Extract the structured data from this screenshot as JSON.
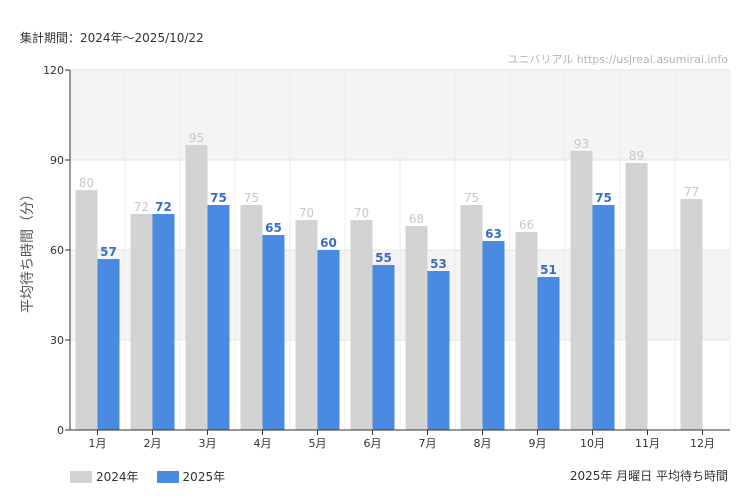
{
  "header": {
    "period": "集計期間：2024年～2025/10/22"
  },
  "watermark": "ユニバリアル https://usjreal.asumirai.info",
  "footnote": "2025年 月曜日 平均待ち時間",
  "colors": {
    "series_2024": "#d3d3d3",
    "series_2025": "#4a8ae0",
    "label_2024": "#c8c8c8",
    "label_2025": "#3a6fc0"
  },
  "chart_data": {
    "type": "bar",
    "title": "",
    "xlabel": "",
    "ylabel": "平均待ち時間（分）",
    "ylim": [
      0,
      120
    ],
    "yticks": [
      "0",
      "30",
      "60",
      "90",
      "120"
    ],
    "grid": true,
    "legend_position": "bottom-left",
    "categories": [
      "1月",
      "2月",
      "3月",
      "4月",
      "5月",
      "6月",
      "7月",
      "8月",
      "9月",
      "10月",
      "11月",
      "12月"
    ],
    "series": [
      {
        "name": "2024年",
        "values": [
          80,
          72,
          95,
          75,
          70,
          70,
          68,
          75,
          66,
          93,
          89,
          77
        ]
      },
      {
        "name": "2025年",
        "values": [
          57,
          72,
          75,
          65,
          60,
          55,
          53,
          63,
          51,
          75,
          null,
          null
        ]
      }
    ]
  }
}
